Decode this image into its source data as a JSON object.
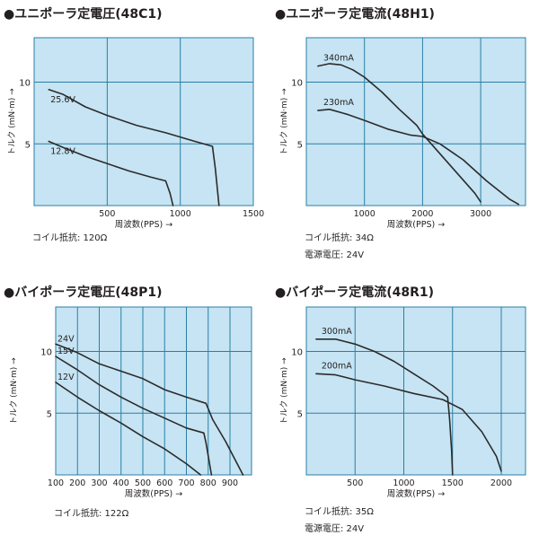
{
  "colors": {
    "plot_background": "#c6e4f3",
    "grid": "#2a7fa6",
    "curve": "#2b2b2b",
    "text": "#231f20"
  },
  "chart_data": [
    {
      "id": "c48c1",
      "type": "line",
      "title": "●ユニポーラ定電圧(48C1)",
      "xlabel": "周波数(PPS) →",
      "ylabel": "トルク (mN·m) →",
      "x_ticks": [
        "500",
        "1000",
        "1500"
      ],
      "y_ticks": [
        "5",
        "10"
      ],
      "xlim": [
        0,
        1500
      ],
      "ylim": [
        0,
        13
      ],
      "grid": true,
      "notes": [
        "コイル抵抗: 120Ω"
      ],
      "series": [
        {
          "name": "25.6V",
          "points": [
            [
              100,
              9.4
            ],
            [
              200,
              9.0
            ],
            [
              350,
              8.0
            ],
            [
              500,
              7.3
            ],
            [
              700,
              6.5
            ],
            [
              900,
              5.9
            ],
            [
              1100,
              5.2
            ],
            [
              1220,
              4.8
            ],
            [
              1240,
              3.0
            ],
            [
              1265,
              0
            ]
          ]
        },
        {
          "name": "12.8V",
          "points": [
            [
              100,
              5.2
            ],
            [
              200,
              4.7
            ],
            [
              350,
              4.0
            ],
            [
              500,
              3.4
            ],
            [
              650,
              2.8
            ],
            [
              800,
              2.3
            ],
            [
              900,
              2.0
            ],
            [
              930,
              1.0
            ],
            [
              950,
              0
            ]
          ]
        }
      ]
    },
    {
      "id": "c48h1",
      "type": "line",
      "title": "●ユニポーラ定電流(48H1)",
      "xlabel": "周波数(PPS) →",
      "ylabel": "トルク (mN·m) →",
      "x_ticks": [
        "1000",
        "2000",
        "3000"
      ],
      "y_ticks": [
        "5",
        "10"
      ],
      "xlim": [
        0,
        4000
      ],
      "ylim": [
        0,
        13
      ],
      "grid": true,
      "notes": [
        "コイル抵抗: 34Ω",
        "電源電圧: 24V"
      ],
      "series": [
        {
          "name": "340mA",
          "points": [
            [
              200,
              11.3
            ],
            [
              400,
              11.5
            ],
            [
              600,
              11.4
            ],
            [
              800,
              11.0
            ],
            [
              1000,
              10.4
            ],
            [
              1300,
              9.2
            ],
            [
              1600,
              7.8
            ],
            [
              1900,
              6.5
            ],
            [
              2000,
              5.8
            ],
            [
              2300,
              4.2
            ],
            [
              2600,
              2.6
            ],
            [
              2900,
              1.0
            ],
            [
              3000,
              0.3
            ]
          ]
        },
        {
          "name": "230mA",
          "points": [
            [
              200,
              7.7
            ],
            [
              400,
              7.8
            ],
            [
              700,
              7.4
            ],
            [
              1000,
              6.9
            ],
            [
              1400,
              6.2
            ],
            [
              1800,
              5.7
            ],
            [
              2000,
              5.6
            ],
            [
              2300,
              5.0
            ],
            [
              2700,
              3.7
            ],
            [
              3100,
              2.0
            ],
            [
              3500,
              0.5
            ],
            [
              3650,
              0.1
            ]
          ]
        }
      ]
    },
    {
      "id": "c48p1",
      "type": "line",
      "title": "●バイポーラ定電圧(48P1)",
      "xlabel": "周波数(PPS) →",
      "ylabel": "トルク (mN·m) →",
      "x_ticks": [
        "100",
        "200",
        "300",
        "400",
        "500",
        "600",
        "700",
        "800",
        "900"
      ],
      "y_ticks": [
        "5",
        "10"
      ],
      "xlim": [
        100,
        970
      ],
      "ylim": [
        0,
        13
      ],
      "grid": true,
      "notes": [
        "コイル抵抗: 122Ω"
      ],
      "series": [
        {
          "name": "24V",
          "points": [
            [
              100,
              10.6
            ],
            [
              200,
              9.9
            ],
            [
              300,
              9.0
            ],
            [
              400,
              8.4
            ],
            [
              500,
              7.8
            ],
            [
              600,
              6.9
            ],
            [
              700,
              6.3
            ],
            [
              790,
              5.8
            ],
            [
              820,
              4.5
            ],
            [
              880,
              2.7
            ],
            [
              960,
              0
            ]
          ]
        },
        {
          "name": "15V",
          "points": [
            [
              100,
              9.6
            ],
            [
              200,
              8.5
            ],
            [
              300,
              7.3
            ],
            [
              400,
              6.3
            ],
            [
              500,
              5.4
            ],
            [
              600,
              4.6
            ],
            [
              700,
              3.8
            ],
            [
              780,
              3.4
            ],
            [
              790,
              2.6
            ],
            [
              815,
              0
            ]
          ]
        },
        {
          "name": "12V",
          "points": [
            [
              100,
              7.5
            ],
            [
              200,
              6.3
            ],
            [
              300,
              5.2
            ],
            [
              400,
              4.2
            ],
            [
              500,
              3.1
            ],
            [
              600,
              2.1
            ],
            [
              700,
              0.9
            ],
            [
              765,
              0
            ]
          ]
        }
      ]
    },
    {
      "id": "c48r1",
      "type": "line",
      "title": "●バイポーラ定電流(48R1)",
      "xlabel": "周波数(PPS) →",
      "ylabel": "トルク (mN·m) →",
      "x_ticks": [
        "500",
        "1000",
        "1500",
        "2000"
      ],
      "y_ticks": [
        "5",
        "10"
      ],
      "xlim": [
        0,
        2100
      ],
      "ylim": [
        0,
        13
      ],
      "grid": true,
      "notes": [
        "コイル抵抗: 35Ω",
        "電源電圧: 24V"
      ],
      "series": [
        {
          "name": "300mA",
          "points": [
            [
              100,
              11.0
            ],
            [
              300,
              11.0
            ],
            [
              500,
              10.6
            ],
            [
              700,
              10.0
            ],
            [
              900,
              9.2
            ],
            [
              1100,
              8.2
            ],
            [
              1300,
              7.2
            ],
            [
              1450,
              6.3
            ],
            [
              1470,
              4.5
            ],
            [
              1490,
              2.0
            ],
            [
              1500,
              0
            ]
          ]
        },
        {
          "name": "200mA",
          "points": [
            [
              100,
              8.2
            ],
            [
              300,
              8.1
            ],
            [
              500,
              7.7
            ],
            [
              800,
              7.2
            ],
            [
              1100,
              6.6
            ],
            [
              1400,
              6.1
            ],
            [
              1600,
              5.3
            ],
            [
              1800,
              3.5
            ],
            [
              1950,
              1.5
            ],
            [
              2000,
              0.3
            ]
          ]
        }
      ]
    }
  ]
}
